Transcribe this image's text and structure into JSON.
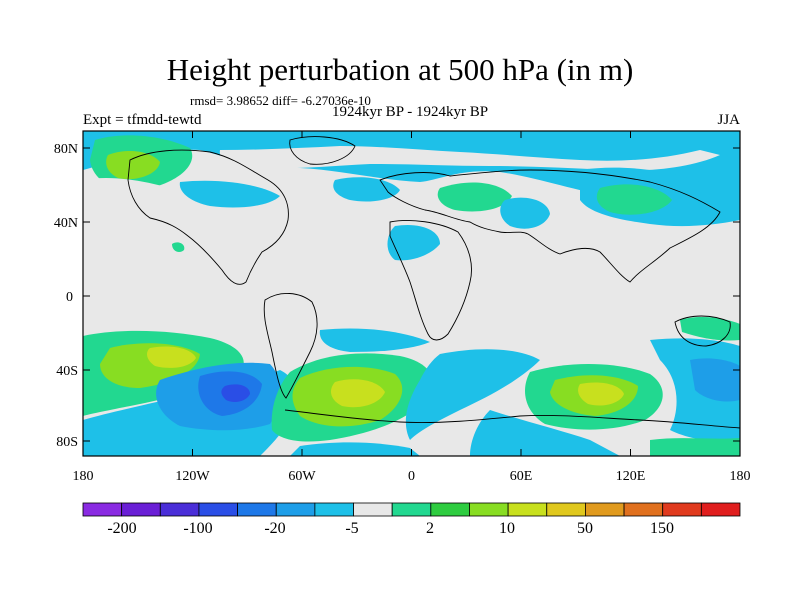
{
  "title": "Height perturbation at 500 hPa (in m)",
  "stats": "rmsd= 3.98652 diff= -6.27036e-10",
  "left_label": "Expt = tfmdd-tewtd",
  "center_label": "1924kyr BP - 1924kyr BP",
  "right_label": "JJA",
  "map": {
    "lat_ticks": [
      "80N",
      "40N",
      "0",
      "40S",
      "80S"
    ],
    "lon_ticks": [
      "180",
      "120W",
      "60W",
      "0",
      "60E",
      "120E",
      "180"
    ]
  },
  "colorbar": {
    "colors": [
      "#8a2be2",
      "#6a1fd6",
      "#4a2ed8",
      "#2a4ee6",
      "#1e78e8",
      "#1e9ee8",
      "#1ec0e8",
      "#e8e8e8",
      "#22d890",
      "#2ecc40",
      "#88dd22",
      "#c8e01e",
      "#e0c81e",
      "#e09a1e",
      "#e0701e",
      "#e03a1e",
      "#e01e1e"
    ],
    "labels": [
      "-200",
      "-100",
      "-20",
      "-5",
      "2",
      "10",
      "50",
      "150"
    ]
  }
}
